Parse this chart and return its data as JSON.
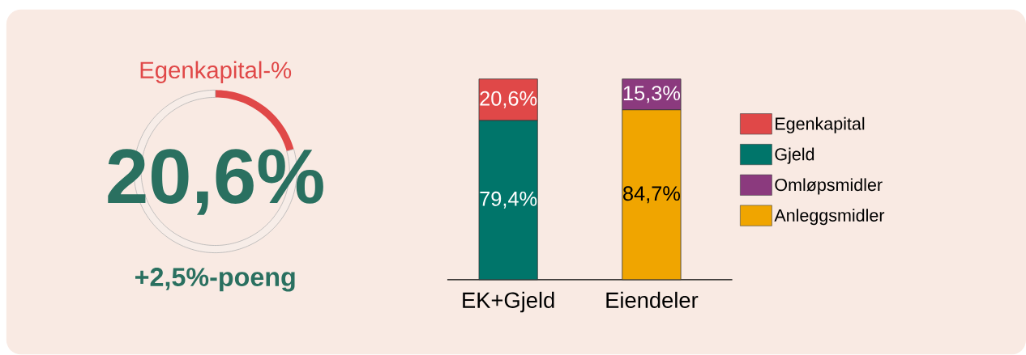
{
  "chart_data": [
    {
      "type": "donut",
      "title": "Egenkapital-%",
      "categories": [
        null,
        null
      ],
      "values": [
        20.6,
        79.4
      ],
      "colors": [
        "#e04848",
        "#f7ede8"
      ],
      "annotations": [
        "20,6%",
        "+2,5%-poeng"
      ]
    },
    {
      "type": "bar",
      "stacked": true,
      "categories": [
        "EK+Gjeld",
        "Eiendeler"
      ],
      "legend": "right",
      "tick_labels": "x",
      "series": [
        {
          "name": "Gjeld",
          "color": "#00756a",
          "values": [
            79.4,
            null
          ],
          "value_labels": [
            "79,4%",
            null
          ]
        },
        {
          "name": "Egenkapital",
          "color": "#e04848",
          "values": [
            20.6,
            null
          ],
          "value_labels": [
            "20,6%",
            null
          ]
        },
        {
          "name": "Anleggsmidler",
          "color": "#f0a500",
          "values": [
            null,
            84.7
          ],
          "value_labels": [
            null,
            "84,7%"
          ]
        },
        {
          "name": "Omløpsmidler",
          "color": "#8b3a7e",
          "values": [
            null,
            15.3
          ],
          "value_labels": [
            null,
            "15,3%"
          ]
        }
      ]
    }
  ]
}
